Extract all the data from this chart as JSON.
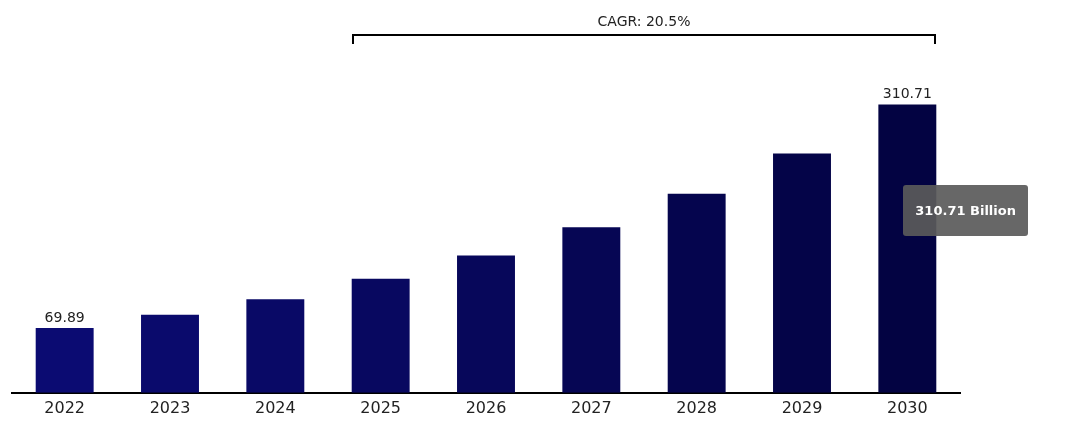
{
  "chart_data": {
    "type": "bar",
    "categories": [
      "2022",
      "2023",
      "2024",
      "2025",
      "2026",
      "2027",
      "2028",
      "2029",
      "2030"
    ],
    "values": [
      69.89,
      84.2,
      100.8,
      123.0,
      148.0,
      178.5,
      214.5,
      258.0,
      310.71
    ],
    "value_labels": [
      "69.89",
      null,
      null,
      null,
      null,
      null,
      null,
      null,
      "310.71"
    ],
    "colors": [
      "#0b0b72",
      "#0a0a6c",
      "#090966",
      "#080860",
      "#07075a",
      "#060654",
      "#05054e",
      "#040448",
      "#030342"
    ],
    "annotations": [
      "CAGR: 20.5%",
      "310.71 Billion"
    ],
    "grid": false,
    "legend": false
  }
}
